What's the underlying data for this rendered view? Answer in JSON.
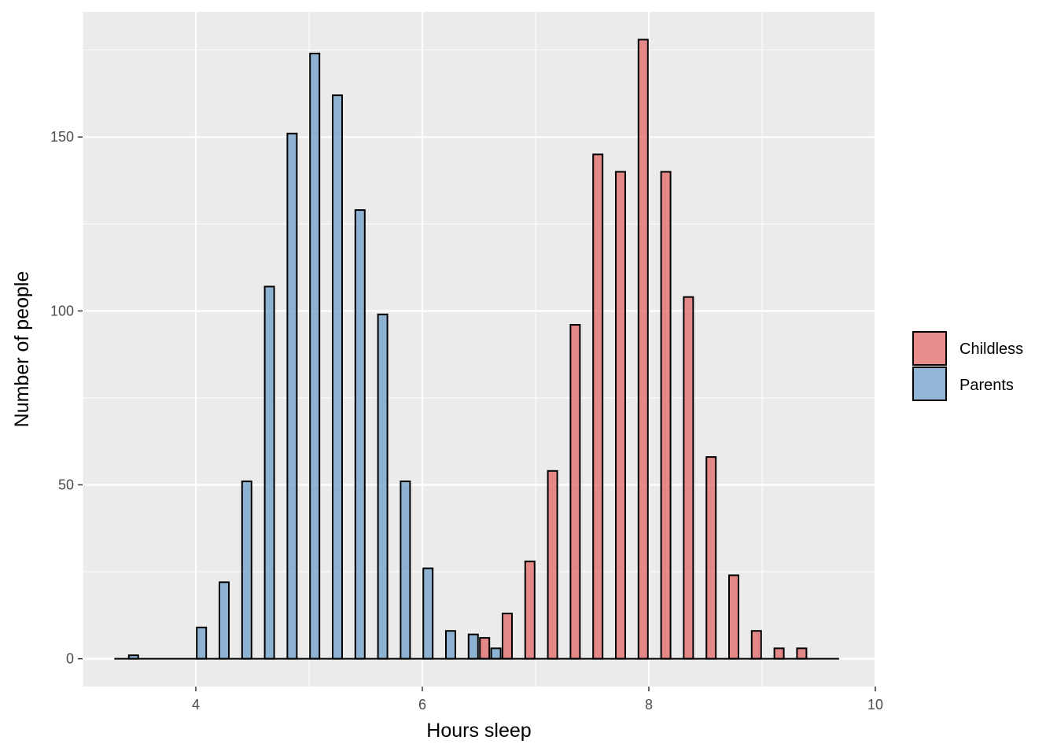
{
  "chart_data": {
    "type": "bar",
    "subtype": "dodged-histogram",
    "xlabel": "Hours sleep",
    "ylabel": "Number of people",
    "xlim": [
      3.0,
      10.0
    ],
    "ylim": [
      -8,
      186
    ],
    "x_ticks": [
      4,
      6,
      8,
      10
    ],
    "y_ticks": [
      0,
      50,
      100,
      150
    ],
    "grid": true,
    "legend_position": "right",
    "bin_width": 0.2,
    "bin_centers": [
      3.4,
      3.6,
      3.8,
      4.0,
      4.2,
      4.4,
      4.6,
      4.8,
      5.0,
      5.2,
      5.4,
      5.6,
      5.8,
      6.0,
      6.2,
      6.4,
      6.6,
      6.8,
      7.0,
      7.2,
      7.4,
      7.6,
      7.8,
      8.0,
      8.2,
      8.4,
      8.6,
      8.8,
      9.0,
      9.2,
      9.4,
      9.6
    ],
    "series": [
      {
        "name": "Childless",
        "color": "#e06666",
        "values": [
          0,
          0,
          0,
          0,
          0,
          0,
          0,
          0,
          0,
          0,
          0,
          0,
          0,
          0,
          0,
          0,
          6,
          13,
          28,
          54,
          96,
          145,
          140,
          178,
          140,
          104,
          58,
          24,
          8,
          3,
          3,
          0
        ]
      },
      {
        "name": "Parents",
        "color": "#6d9ec8",
        "values": [
          1,
          0,
          0,
          9,
          22,
          51,
          107,
          151,
          174,
          162,
          129,
          99,
          51,
          26,
          8,
          7,
          3,
          0,
          0,
          0,
          0,
          0,
          0,
          0,
          0,
          0,
          0,
          0,
          0,
          0,
          0,
          0
        ]
      }
    ]
  },
  "style": {
    "panel_background": "#ebebeb",
    "grid_color": "#ffffff",
    "bar_outline": "#000000",
    "bar_opacity": 0.75
  }
}
